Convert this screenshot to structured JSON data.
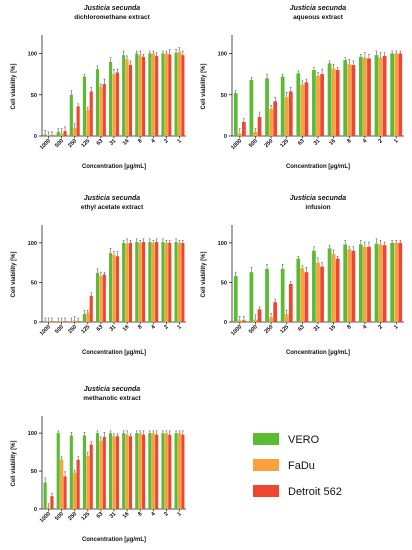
{
  "chart_data": [
    {
      "type": "bar",
      "title": "Justicia secunda",
      "subtitle": "dichloromethane extract",
      "xlabel": "Concentration [µg/mL]",
      "ylabel": "Cell viability [%]",
      "ylim": [
        0,
        120
      ],
      "yticks": [
        0,
        50,
        100
      ],
      "categories": [
        "1000",
        "500",
        "250",
        "125",
        "63",
        "31",
        "16",
        "8",
        "4",
        "2",
        "1"
      ],
      "series": [
        {
          "name": "VERO",
          "values": [
            2,
            5,
            50,
            72,
            81,
            90,
            98,
            100,
            100,
            100,
            101
          ]
        },
        {
          "name": "FaDu",
          "values": [
            1,
            3,
            10,
            32,
            60,
            75,
            93,
            98,
            100,
            100,
            102
          ]
        },
        {
          "name": "Detroit 562",
          "values": [
            1,
            6,
            36,
            54,
            63,
            77,
            86,
            96,
            97,
            99,
            98
          ]
        }
      ]
    },
    {
      "type": "bar",
      "title": "Justicia secunda",
      "subtitle": "aqueous extract",
      "xlabel": "Concentration [µg/mL]",
      "ylabel": "Cell viability [%]",
      "ylim": [
        0,
        120
      ],
      "yticks": [
        0,
        50,
        100
      ],
      "categories": [
        "1000",
        "500",
        "250",
        "125",
        "63",
        "31",
        "16",
        "8",
        "4",
        "2",
        "1"
      ],
      "series": [
        {
          "name": "VERO",
          "values": [
            52,
            68,
            70,
            72,
            76,
            80,
            88,
            92,
            96,
            98,
            100
          ]
        },
        {
          "name": "FaDu",
          "values": [
            3,
            5,
            33,
            47,
            62,
            73,
            82,
            87,
            95,
            95,
            100
          ]
        },
        {
          "name": "Detroit 562",
          "values": [
            17,
            23,
            42,
            54,
            65,
            75,
            80,
            86,
            94,
            97,
            100
          ]
        }
      ]
    },
    {
      "type": "bar",
      "title": "Justicia secunda",
      "subtitle": "ethyl acetate extract",
      "xlabel": "Concentration [µg/mL]",
      "ylabel": "Cell viability [%]",
      "ylim": [
        0,
        120
      ],
      "yticks": [
        0,
        50,
        100
      ],
      "categories": [
        "1000",
        "500",
        "250",
        "125",
        "63",
        "31",
        "16",
        "8",
        "4",
        "2",
        "1"
      ],
      "series": [
        {
          "name": "VERO",
          "values": [
            1,
            1,
            1,
            10,
            62,
            87,
            100,
            101,
            101,
            101,
            101
          ]
        },
        {
          "name": "FaDu",
          "values": [
            1,
            1,
            2,
            12,
            58,
            85,
            99,
            100,
            100,
            100,
            100
          ]
        },
        {
          "name": "Detroit 562",
          "values": [
            1,
            1,
            1,
            33,
            60,
            83,
            100,
            101,
            101,
            100,
            100
          ]
        }
      ]
    },
    {
      "type": "bar",
      "title": "Justicia secunda",
      "subtitle": "infusion",
      "xlabel": "Concentration [µg/mL]",
      "ylabel": "Cell viability [%]",
      "ylim": [
        0,
        120
      ],
      "yticks": [
        0,
        50,
        100
      ],
      "categories": [
        "1000",
        "500",
        "250",
        "125",
        "63",
        "31",
        "16",
        "8",
        "4",
        "2",
        "1"
      ],
      "series": [
        {
          "name": "VERO",
          "values": [
            58,
            63,
            67,
            67,
            80,
            90,
            93,
            98,
            98,
            99,
            100
          ]
        },
        {
          "name": "FaDu",
          "values": [
            2,
            3,
            6,
            10,
            68,
            75,
            86,
            92,
            95,
            98,
            100
          ]
        },
        {
          "name": "Detroit 562",
          "values": [
            2,
            16,
            25,
            48,
            63,
            70,
            80,
            90,
            95,
            97,
            100
          ]
        }
      ]
    },
    {
      "type": "bar",
      "title": "Justicia secunda",
      "subtitle": "methanolic extract",
      "xlabel": "Concentration [µg/mL]",
      "ylabel": "Cell viability [%]",
      "ylim": [
        0,
        120
      ],
      "yticks": [
        0,
        50,
        100
      ],
      "categories": [
        "1000",
        "500",
        "250",
        "125",
        "63",
        "31",
        "16",
        "8",
        "4",
        "2",
        "1"
      ],
      "series": [
        {
          "name": "VERO",
          "values": [
            35,
            100,
            97,
            97,
            100,
            100,
            100,
            100,
            100,
            100,
            100
          ]
        },
        {
          "name": "FaDu",
          "values": [
            2,
            65,
            48,
            70,
            90,
            96,
            98,
            100,
            100,
            100,
            100
          ]
        },
        {
          "name": "Detroit 562",
          "values": [
            17,
            43,
            65,
            85,
            95,
            96,
            96,
            98,
            98,
            98,
            98
          ]
        }
      ]
    }
  ],
  "legend": {
    "placement": "bottom-right",
    "items": [
      {
        "label": "VERO",
        "color": "#5cba33"
      },
      {
        "label": "FaDu",
        "color": "#f9a13c"
      },
      {
        "label": "Detroit 562",
        "color": "#ef472f"
      }
    ]
  },
  "colors": {
    "VERO": "#5cba33",
    "FaDu": "#f9a13c",
    "Detroit 562": "#ef472f"
  }
}
